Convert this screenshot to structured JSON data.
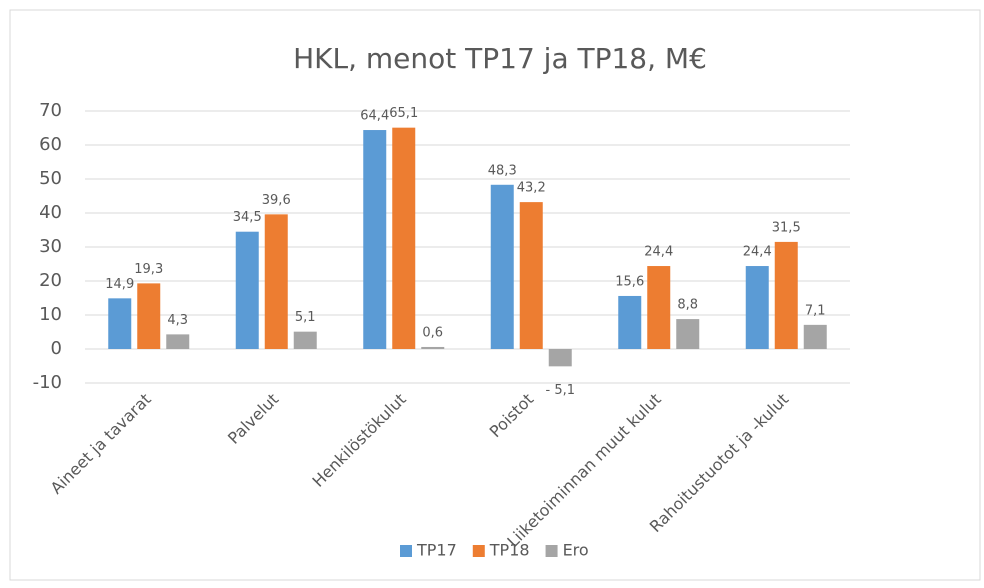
{
  "chart_data": {
    "type": "bar",
    "title": "HKL, menot TP17 ja TP18, M€",
    "categories": [
      "Aineet ja tavarat",
      "Palvelut",
      "Henkilöstökulut",
      "Poistot",
      "Liiketoiminnan muut kulut",
      "Rahoitustuotot  ja  -kulut"
    ],
    "series": [
      {
        "name": "TP17",
        "color": "#5b9bd5",
        "values": [
          14.9,
          34.5,
          64.4,
          48.3,
          15.6,
          24.4
        ],
        "value_labels": [
          "14,9",
          "34,5",
          "64,4",
          "48,3",
          "15,6",
          "24,4"
        ]
      },
      {
        "name": "TP18",
        "color": "#ed7d31",
        "values": [
          19.3,
          39.6,
          65.1,
          43.2,
          24.4,
          31.5
        ],
        "value_labels": [
          "19,3",
          "39,6",
          "65,1",
          "43,2",
          "24,4",
          "31,5"
        ]
      },
      {
        "name": "Ero",
        "color": "#a5a5a5",
        "values": [
          4.3,
          5.1,
          0.6,
          -5.1,
          8.8,
          7.1
        ],
        "value_labels": [
          "4,3",
          "5,1",
          "0,6",
          "- 5,1",
          "8,8",
          "7,1"
        ]
      }
    ],
    "ylim": [
      -10,
      70
    ],
    "yticks": [
      -10,
      0,
      10,
      20,
      30,
      40,
      50,
      60,
      70
    ],
    "grid": true,
    "legend": "bottom"
  }
}
